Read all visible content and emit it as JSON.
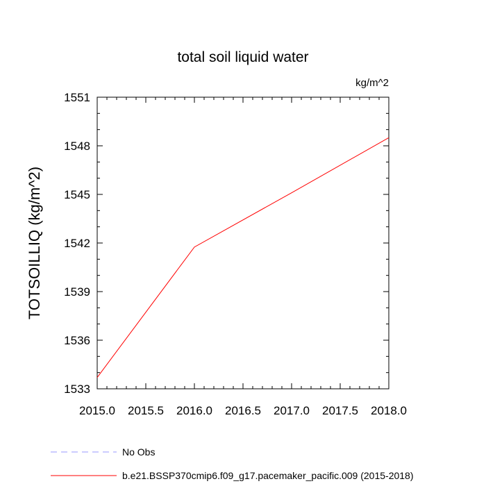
{
  "chart_data": {
    "type": "line",
    "title": "total soil liquid water",
    "units_label": "kg/m^2",
    "xlabel": "",
    "ylabel": "TOTSOILLIQ  (kg/m^2)",
    "xlim": [
      2015.0,
      2018.0
    ],
    "ylim": [
      1533,
      1551
    ],
    "x_ticks": [
      2015.0,
      2015.5,
      2016.0,
      2016.5,
      2017.0,
      2017.5,
      2018.0
    ],
    "x_tick_labels": [
      "2015.0",
      "2015.5",
      "2016.0",
      "2016.5",
      "2017.0",
      "2017.5",
      "2018.0"
    ],
    "y_ticks": [
      1533,
      1536,
      1539,
      1542,
      1545,
      1548,
      1551
    ],
    "y_tick_labels": [
      "1533",
      "1536",
      "1539",
      "1542",
      "1545",
      "1548",
      "1551"
    ],
    "grid": false,
    "legend_placement": "bottom",
    "series": [
      {
        "name": "No Obs",
        "color": "#9999ff",
        "dash": "dashed",
        "x": [],
        "y": []
      },
      {
        "name": "b.e21.BSSP370cmip6.f09_g17.pacemaker_pacific.009 (2015-2018)",
        "color": "#ff0000",
        "dash": "solid",
        "x": [
          2015.0,
          2016.0,
          2017.0,
          2018.0
        ],
        "y": [
          1533.7,
          1541.75,
          1545.1,
          1548.5
        ]
      }
    ]
  }
}
